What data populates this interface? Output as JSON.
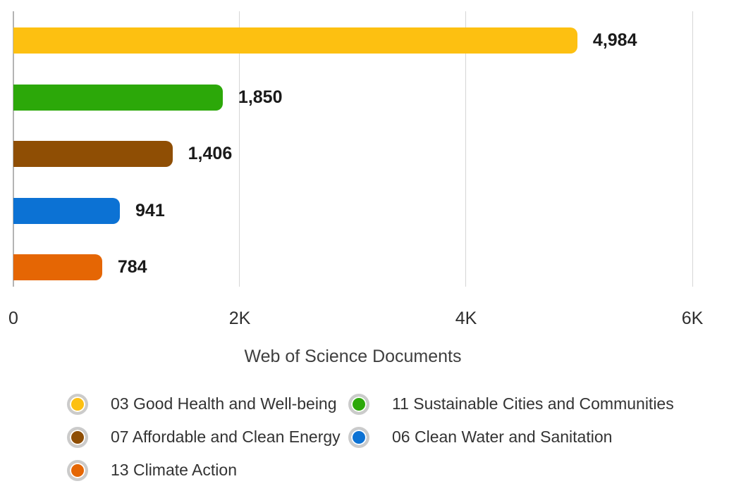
{
  "chart_data": {
    "type": "bar",
    "orientation": "horizontal",
    "xlabel": "Web of Science Documents",
    "x_ticks": [
      "0",
      "2K",
      "4K",
      "6K"
    ],
    "xlim": [
      0,
      6000
    ],
    "grid": "vertical",
    "legend_position": "bottom",
    "legend_columns": 2,
    "series": [
      {
        "label": "03 Good Health and Well-being",
        "value": 4984,
        "display_value": "4,984",
        "color": "#FDC011"
      },
      {
        "label": "11 Sustainable Cities and Communities",
        "value": 1850,
        "display_value": "1,850",
        "color": "#2CA809"
      },
      {
        "label": "07 Affordable and Clean Energy",
        "value": 1406,
        "display_value": "1,406",
        "color": "#8F4E04"
      },
      {
        "label": "06 Clean Water and Sanitation",
        "value": 941,
        "display_value": "941",
        "color": "#0C72D4"
      },
      {
        "label": "13 Climate Action",
        "value": 784,
        "display_value": "784",
        "color": "#E56604"
      }
    ],
    "style_colors": {
      "gridline": "#d6d6d6",
      "axis_line": "#b4b4b4",
      "value_label_text": "#1a1a1a",
      "tick_text": "#2e2e2e",
      "title_text": "#3f3f3f",
      "legend_ring": "#cbcbcb"
    }
  }
}
